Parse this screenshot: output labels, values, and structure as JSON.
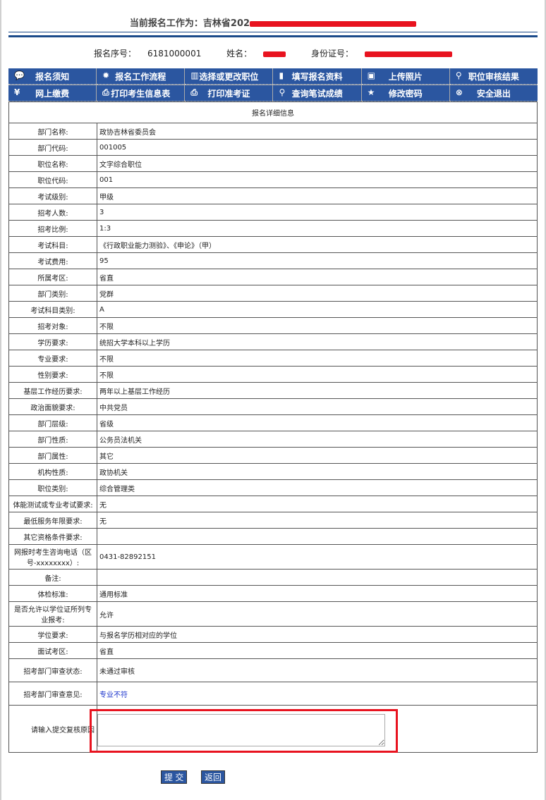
{
  "header": {
    "title_prefix": "当前报名工作为：吉林省202",
    "serial_label": "报名序号：",
    "serial": "6181000001",
    "name_label": "姓名：",
    "id_label": "身份证号："
  },
  "nav": [
    {
      "label": "报名须知",
      "icon": "notice-icon"
    },
    {
      "label": "报名工作流程",
      "icon": "flow-icon"
    },
    {
      "label": "选择或更改职位",
      "icon": "book-icon"
    },
    {
      "label": "填写报名资料",
      "icon": "form-icon"
    },
    {
      "label": "上传照片",
      "icon": "photo-icon"
    },
    {
      "label": "职位审核结果",
      "icon": "magnifier-icon"
    },
    {
      "label": "网上缴费",
      "icon": "payment-icon"
    },
    {
      "label": "打印考生信息表",
      "icon": "printer-icon"
    },
    {
      "label": "打印准考证",
      "icon": "printer-icon"
    },
    {
      "label": "查询笔试成绩",
      "icon": "magnifier-icon"
    },
    {
      "label": "修改密码",
      "icon": "star-icon"
    },
    {
      "label": "安全退出",
      "icon": "exit-icon"
    }
  ],
  "table": {
    "title": "报名详细信息",
    "rows": [
      {
        "label": "部门名称:",
        "value": "政协吉林省委员会"
      },
      {
        "label": "部门代码:",
        "value": "001005"
      },
      {
        "label": "职位名称:",
        "value": "文字综合职位"
      },
      {
        "label": "职位代码:",
        "value": "001"
      },
      {
        "label": "考试级别:",
        "value": "甲级"
      },
      {
        "label": "招考人数:",
        "value": "3"
      },
      {
        "label": "招考比例:",
        "value": "1:3"
      },
      {
        "label": "考试科目:",
        "value": "《行政职业能力测验》、《申论》（甲）"
      },
      {
        "label": "考试费用:",
        "value": "95"
      },
      {
        "label": "所属考区:",
        "value": "省直"
      },
      {
        "label": "部门类别:",
        "value": "党群"
      },
      {
        "label": "考试科目类别:",
        "value": "A"
      },
      {
        "label": "招考对象:",
        "value": "不限"
      },
      {
        "label": "学历要求:",
        "value": "统招大学本科以上学历"
      },
      {
        "label": "专业要求:",
        "value": "不限"
      },
      {
        "label": "性别要求:",
        "value": "不限"
      },
      {
        "label": "基层工作经历要求:",
        "value": "两年以上基层工作经历"
      },
      {
        "label": "政治面貌要求:",
        "value": "中共党员"
      },
      {
        "label": "部门层级:",
        "value": "省级"
      },
      {
        "label": "部门性质:",
        "value": "公务员法机关"
      },
      {
        "label": "部门属性:",
        "value": "其它"
      },
      {
        "label": "机构性质:",
        "value": "政协机关"
      },
      {
        "label": "职位类别:",
        "value": "综合管理类"
      },
      {
        "label": "体能测试或专业考试要求:",
        "value": "无"
      },
      {
        "label": "最低服务年限要求:",
        "value": "无"
      },
      {
        "label": "其它资格条件要求:",
        "value": ""
      },
      {
        "label": "网报时考生咨询电话（区号-xxxxxxxx）:",
        "value": "0431-82892151"
      },
      {
        "label": "备注:",
        "value": ""
      },
      {
        "label": "体检标准:",
        "value": "通用标准"
      },
      {
        "label": "是否允许以学位证所列专业报考:",
        "value": "允许"
      },
      {
        "label": "学位要求:",
        "value": "与报名学历相对应的学位"
      },
      {
        "label": "面试考区:",
        "value": "省直"
      }
    ],
    "status_label": "招考部门审查状态:",
    "status_value": "未通过审核",
    "opinion_label": "招考部门审查意见:",
    "opinion_value": "专业不符",
    "reason_label": "请输入提交复核原因",
    "reason_value": ""
  },
  "buttons": {
    "submit": "提 交",
    "back": "返回"
  }
}
